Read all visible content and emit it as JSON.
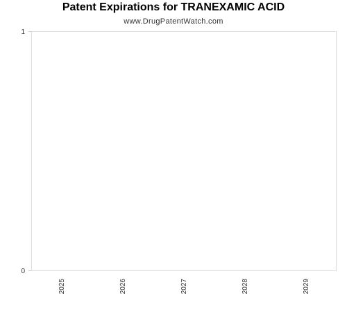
{
  "chart_data": {
    "type": "bar",
    "title": "Patent Expirations for TRANEXAMIC ACID",
    "subtitle": "www.DrugPatentWatch.com",
    "categories": [
      "2025",
      "2026",
      "2027",
      "2028",
      "2029"
    ],
    "values": [
      0,
      0,
      0,
      0,
      0
    ],
    "xlabel": "",
    "ylabel": "",
    "ylim": [
      0,
      1
    ],
    "y_ticks": [
      "0",
      "1"
    ],
    "grid": false,
    "legend": "none",
    "colors": {
      "frame": "#dddddd",
      "axis_line": "#c8c8c8",
      "text": "#333333",
      "bar": "#4a7ebb"
    }
  }
}
